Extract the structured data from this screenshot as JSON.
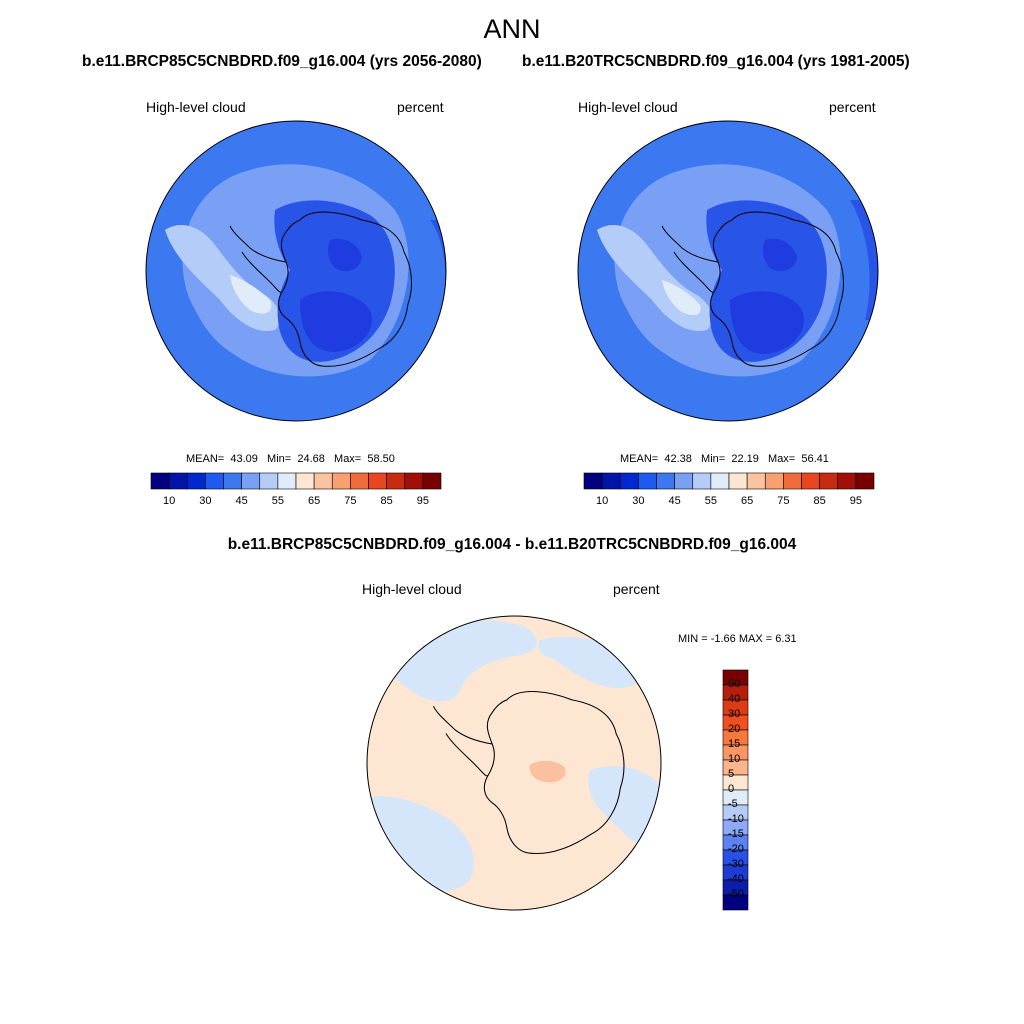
{
  "title": "ANN",
  "panels": [
    {
      "case_title": "b.e11.BRCP85C5CNBDRD.f09_g16.004 (yrs 2056-2080)",
      "variable_label": "High-level cloud",
      "units_label": "percent",
      "stats": {
        "mean_label": "MEAN=",
        "mean": "43.09",
        "min_label": "Min=",
        "min": "24.68",
        "max_label": "Max=",
        "max": "58.50"
      }
    },
    {
      "case_title": "b.e11.B20TRC5CNBDRD.f09_g16.004 (yrs 1981-2005)",
      "variable_label": "High-level cloud",
      "units_label": "percent",
      "stats": {
        "mean_label": "MEAN=",
        "mean": "42.38",
        "min_label": "Min=",
        "min": "22.19",
        "max_label": "Max=",
        "max": "56.41"
      }
    }
  ],
  "difference": {
    "title": "b.e11.BRCP85C5CNBDRD.f09_g16.004 - b.e11.B20TRC5CNBDRD.f09_g16.004",
    "variable_label": "High-level cloud",
    "units_label": "percent",
    "minmax": "MIN =  -1.66 MAX =   6.31"
  },
  "colorbar_main": {
    "colors": [
      "#000080",
      "#0014a8",
      "#0028d0",
      "#1e5af0",
      "#3c78f0",
      "#7aa0f5",
      "#b4cdf8",
      "#e0ecfa",
      "#fde6d2",
      "#fbc4a0",
      "#f8a070",
      "#f06c3c",
      "#e8461e",
      "#c82c10",
      "#a01008",
      "#780000"
    ],
    "tick_labels": [
      "10",
      "30",
      "45",
      "55",
      "65",
      "75",
      "85",
      "95"
    ]
  },
  "colorbar_diff": {
    "colors": [
      "#780000",
      "#b41e0a",
      "#dc3c14",
      "#f0501e",
      "#f8783c",
      "#fa9664",
      "#fbb48c",
      "#fde6d2",
      "#e0ecfa",
      "#b4cdf8",
      "#8caaf8",
      "#5a82f0",
      "#2850e6",
      "#1e3cd2",
      "#0a1eaa",
      "#000080"
    ],
    "tick_labels": [
      "50",
      "40",
      "30",
      "20",
      "15",
      "10",
      "5",
      "0",
      "-5",
      "-10",
      "-15",
      "-20",
      "-30",
      "-40",
      "-50"
    ]
  },
  "map_colors": {
    "ocean_main": "#3c78f0",
    "inner_main": "#2855e8",
    "deep_main": "#1e3ce0",
    "light_main": "#7aa0f5",
    "lighter_main": "#b4cdf8",
    "lightest_main": "#e0ecfa",
    "diff_pos": "#fde6d2",
    "diff_neg": "#d6e6fa",
    "diff_hot": "#fbc0a0"
  }
}
